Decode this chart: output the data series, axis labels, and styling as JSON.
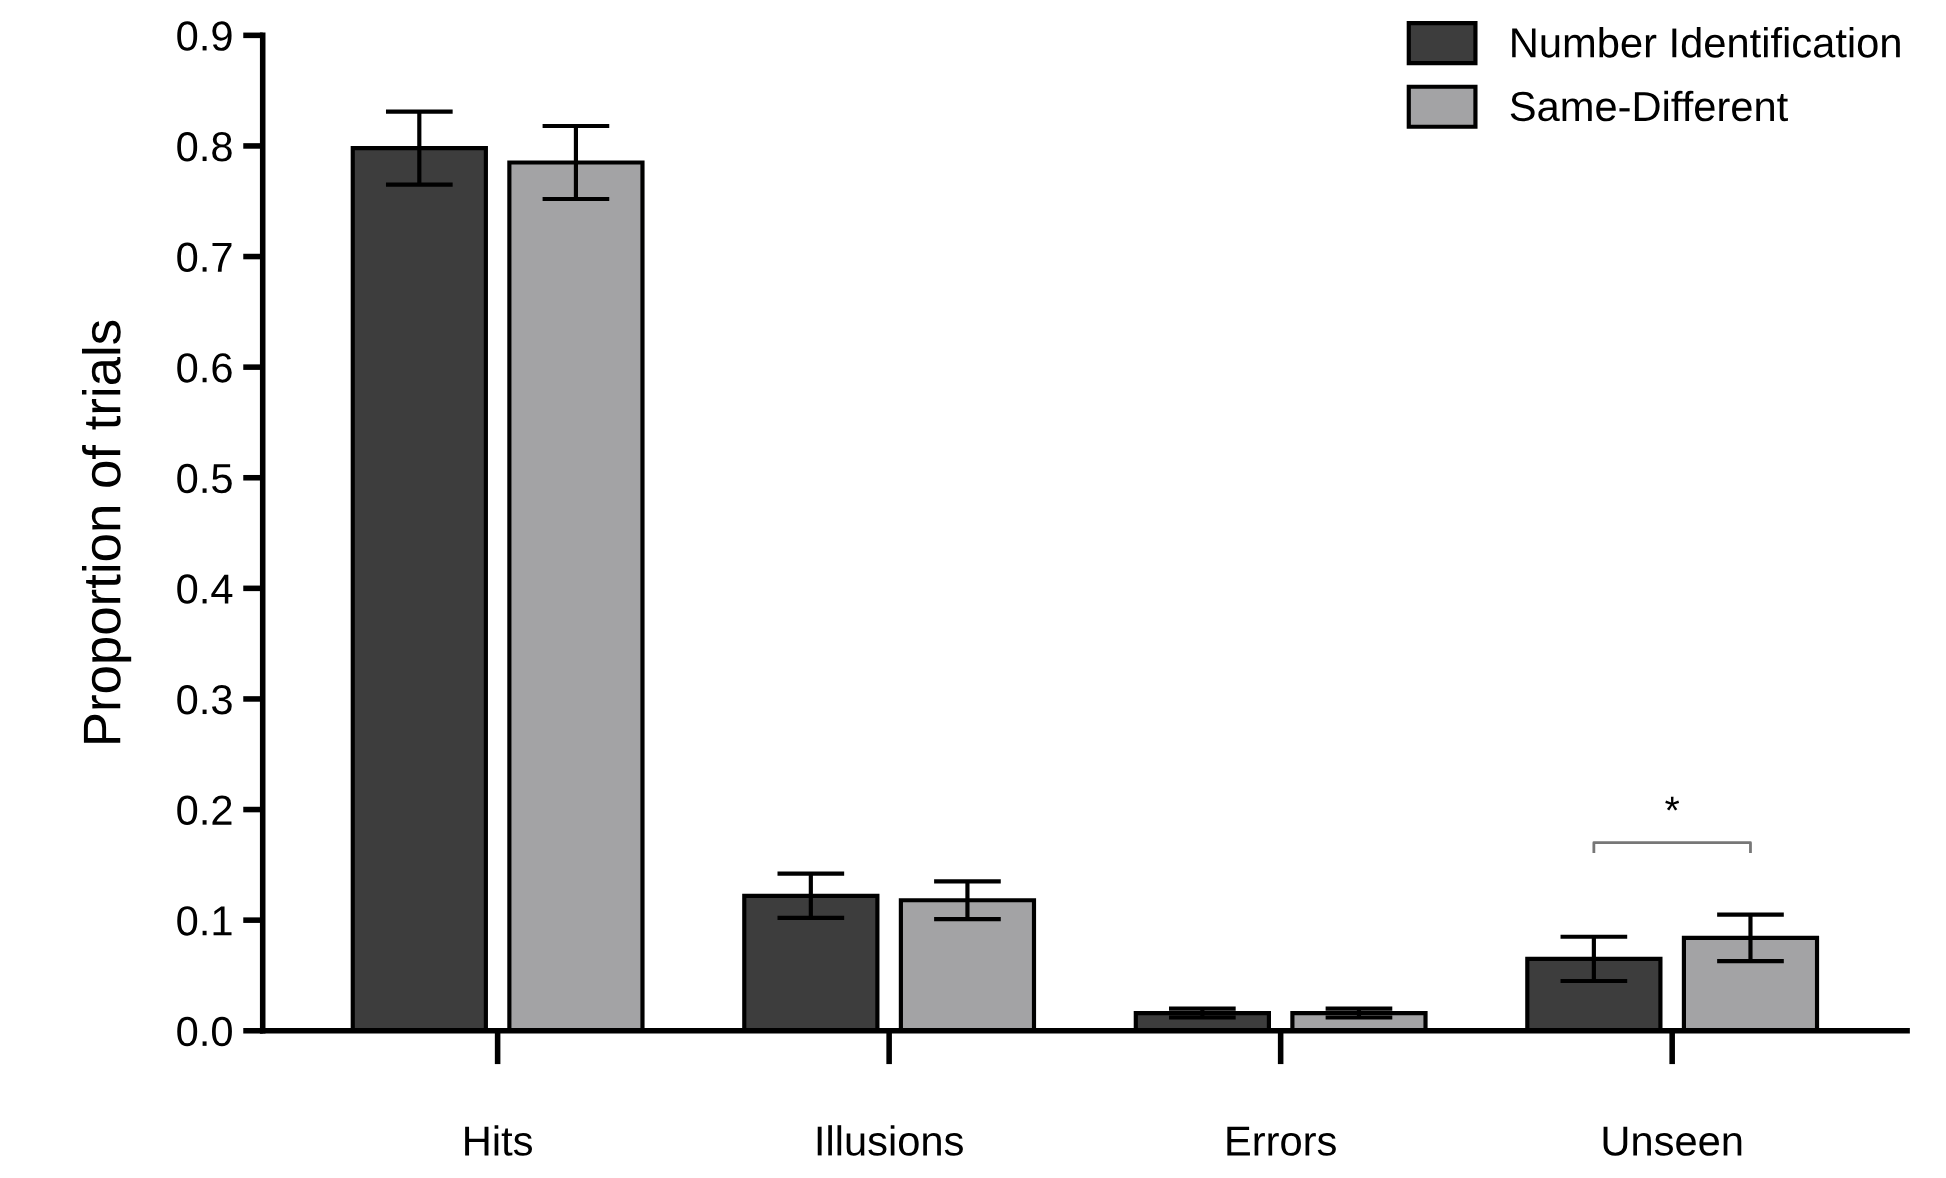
{
  "chart_data": {
    "type": "bar",
    "ylabel": "Proportion of trials",
    "categories": [
      "Hits",
      "Illusions",
      "Errors",
      "Unseen"
    ],
    "series": [
      {
        "name": "Number Identification",
        "color": "#3d3d3d",
        "values": [
          0.798,
          0.122,
          0.016,
          0.065
        ],
        "errors": [
          0.033,
          0.02,
          0.004,
          0.02
        ]
      },
      {
        "name": "Same-Different",
        "color": "#a3a3a5",
        "values": [
          0.785,
          0.118,
          0.016,
          0.084
        ],
        "errors": [
          0.033,
          0.017,
          0.004,
          0.021
        ]
      }
    ],
    "ylim": [
      0,
      0.9
    ],
    "yticks": [
      {
        "value": 0,
        "label": "0.0"
      },
      0.1,
      0.2,
      0.3,
      0.4,
      0.5,
      0.6,
      0.7,
      0.8,
      0.9
    ],
    "annotations": [
      "*"
    ],
    "legend": "top right",
    "grid": false
  }
}
